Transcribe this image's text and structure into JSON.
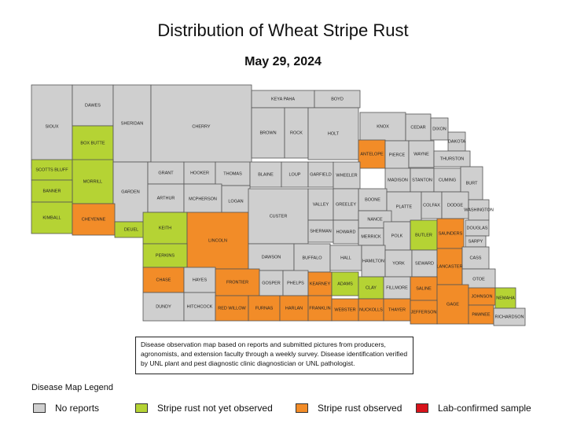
{
  "title": "Distribution of Wheat Stripe Rust",
  "date": "May 29, 2024",
  "note": "Disease observation map based on reports and submitted pictures from producers, agronomists, and extension faculty through a weekly survey. Disease identification verified by UNL plant and pest diagnostic clinic diagnostician or UNL pathologist.",
  "legend": {
    "title": "Disease Map Legend",
    "items": [
      {
        "label": "No reports",
        "color": "#cfcfcf"
      },
      {
        "label": "Stripe rust not yet observed",
        "color": "#b5d334"
      },
      {
        "label": "Stripe rust observed",
        "color": "#f28c28"
      },
      {
        "label": "Lab-confirmed sample",
        "color": "#d8131b"
      }
    ]
  },
  "colors": {
    "none": "#cfcfcf",
    "not_observed": "#b5d334",
    "observed": "#f28c28",
    "lab": "#d8131b",
    "border": "#555555"
  },
  "counties": [
    {
      "name": "SIOUX",
      "status": "none"
    },
    {
      "name": "DAWES",
      "status": "none"
    },
    {
      "name": "BOX BUTTE",
      "status": "not_observed"
    },
    {
      "name": "SHERIDAN",
      "status": "none"
    },
    {
      "name": "CHERRY",
      "status": "none"
    },
    {
      "name": "KEYA PAHA",
      "status": "none"
    },
    {
      "name": "BOYD",
      "status": "none"
    },
    {
      "name": "BROWN",
      "status": "none"
    },
    {
      "name": "ROCK",
      "status": "none"
    },
    {
      "name": "HOLT",
      "status": "none"
    },
    {
      "name": "KNOX",
      "status": "none"
    },
    {
      "name": "CEDAR",
      "status": "none"
    },
    {
      "name": "DIXON",
      "status": "none"
    },
    {
      "name": "DAKOTA",
      "status": "none"
    },
    {
      "name": "ANTELOPE",
      "status": "observed"
    },
    {
      "name": "PIERCE",
      "status": "none"
    },
    {
      "name": "WAYNE",
      "status": "none"
    },
    {
      "name": "THURSTON",
      "status": "none"
    },
    {
      "name": "SCOTTS BLUFF",
      "status": "not_observed"
    },
    {
      "name": "MORRILL",
      "status": "not_observed"
    },
    {
      "name": "BANNER",
      "status": "not_observed"
    },
    {
      "name": "GARDEN",
      "status": "none"
    },
    {
      "name": "GRANT",
      "status": "none"
    },
    {
      "name": "HOOKER",
      "status": "none"
    },
    {
      "name": "THOMAS",
      "status": "none"
    },
    {
      "name": "BLAINE",
      "status": "none"
    },
    {
      "name": "LOUP",
      "status": "none"
    },
    {
      "name": "GARFIELD",
      "status": "none"
    },
    {
      "name": "WHEELER",
      "status": "none"
    },
    {
      "name": "MADISON",
      "status": "none"
    },
    {
      "name": "STANTON",
      "status": "none"
    },
    {
      "name": "CUMING",
      "status": "none"
    },
    {
      "name": "BURT",
      "status": "none"
    },
    {
      "name": "ARTHUR",
      "status": "none"
    },
    {
      "name": "MCPHERSON",
      "status": "none"
    },
    {
      "name": "LOGAN",
      "status": "none"
    },
    {
      "name": "BOONE",
      "status": "none"
    },
    {
      "name": "PLATTE",
      "status": "none"
    },
    {
      "name": "COLFAX",
      "status": "none"
    },
    {
      "name": "DODGE",
      "status": "none"
    },
    {
      "name": "WASHINGTON",
      "status": "none"
    },
    {
      "name": "KIMBALL",
      "status": "not_observed"
    },
    {
      "name": "CHEYENNE",
      "status": "observed"
    },
    {
      "name": "DEUEL",
      "status": "not_observed"
    },
    {
      "name": "KEITH",
      "status": "not_observed"
    },
    {
      "name": "LINCOLN",
      "status": "observed"
    },
    {
      "name": "CUSTER",
      "status": "none"
    },
    {
      "name": "VALLEY",
      "status": "none"
    },
    {
      "name": "GREELEY",
      "status": "none"
    },
    {
      "name": "NANCE",
      "status": "none"
    },
    {
      "name": "SHERMAN",
      "status": "none"
    },
    {
      "name": "HOWARD",
      "status": "none"
    },
    {
      "name": "MERRICK",
      "status": "none"
    },
    {
      "name": "POLK",
      "status": "none"
    },
    {
      "name": "BUTLER",
      "status": "not_observed"
    },
    {
      "name": "SAUNDERS",
      "status": "observed"
    },
    {
      "name": "DOUGLAS",
      "status": "none"
    },
    {
      "name": "SARPY",
      "status": "none"
    },
    {
      "name": "PERKINS",
      "status": "not_observed"
    },
    {
      "name": "DAWSON",
      "status": "none"
    },
    {
      "name": "BUFFALO",
      "status": "none"
    },
    {
      "name": "HALL",
      "status": "none"
    },
    {
      "name": "HAMILTON",
      "status": "none"
    },
    {
      "name": "YORK",
      "status": "none"
    },
    {
      "name": "SEWARD",
      "status": "none"
    },
    {
      "name": "LANCASTER",
      "status": "observed"
    },
    {
      "name": "CASS",
      "status": "none"
    },
    {
      "name": "OTOE",
      "status": "none"
    },
    {
      "name": "CHASE",
      "status": "observed"
    },
    {
      "name": "HAYES",
      "status": "none"
    },
    {
      "name": "FRONTIER",
      "status": "observed"
    },
    {
      "name": "GOSPER",
      "status": "none"
    },
    {
      "name": "PHELPS",
      "status": "none"
    },
    {
      "name": "KEARNEY",
      "status": "observed"
    },
    {
      "name": "ADAMS",
      "status": "not_observed"
    },
    {
      "name": "CLAY",
      "status": "not_observed"
    },
    {
      "name": "FILLMORE",
      "status": "none"
    },
    {
      "name": "SALINE",
      "status": "observed"
    },
    {
      "name": "GAGE",
      "status": "observed"
    },
    {
      "name": "JOHNSON",
      "status": "observed"
    },
    {
      "name": "NEMAHA",
      "status": "not_observed"
    },
    {
      "name": "DUNDY",
      "status": "none"
    },
    {
      "name": "HITCHCOCK",
      "status": "none"
    },
    {
      "name": "RED WILLOW",
      "status": "observed"
    },
    {
      "name": "FURNAS",
      "status": "observed"
    },
    {
      "name": "HARLAN",
      "status": "observed"
    },
    {
      "name": "FRANKLIN",
      "status": "observed"
    },
    {
      "name": "WEBSTER",
      "status": "observed"
    },
    {
      "name": "NUCKOLLS",
      "status": "observed"
    },
    {
      "name": "THAYER",
      "status": "observed"
    },
    {
      "name": "JEFFERSON",
      "status": "observed"
    },
    {
      "name": "PAWNEE",
      "status": "observed"
    },
    {
      "name": "RICHARDSON",
      "status": "none"
    }
  ]
}
